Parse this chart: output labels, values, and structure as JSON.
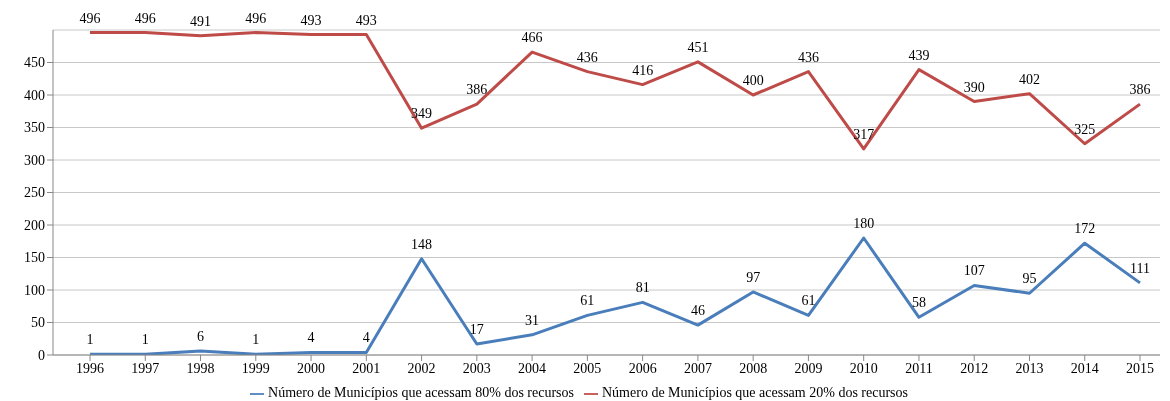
{
  "chart_data": {
    "type": "line",
    "categories": [
      "1996",
      "1997",
      "1998",
      "1999",
      "2000",
      "2001",
      "2002",
      "2003",
      "2004",
      "2005",
      "2006",
      "2007",
      "2008",
      "2009",
      "2010",
      "2011",
      "2012",
      "2013",
      "2014",
      "2015"
    ],
    "series": [
      {
        "name": "Número de Municípios que acessam 80% dos recursos",
        "color": "#4a7ebb",
        "values": [
          1,
          1,
          6,
          1,
          4,
          4,
          148,
          17,
          31,
          61,
          81,
          46,
          97,
          61,
          180,
          58,
          107,
          95,
          172,
          111
        ]
      },
      {
        "name": "Número de Municípios que acessam 20% dos recursos",
        "color": "#be4b48",
        "values": [
          496,
          496,
          491,
          496,
          493,
          493,
          349,
          386,
          466,
          436,
          416,
          451,
          400,
          436,
          317,
          439,
          390,
          402,
          325,
          386
        ]
      }
    ],
    "ylim": [
      0,
      500
    ],
    "yticks": [
      0,
      50,
      100,
      150,
      200,
      250,
      300,
      350,
      400,
      450
    ],
    "grid": "y",
    "legend": "bottom",
    "data_labels": true,
    "marker": "none",
    "line_style": "solid"
  }
}
